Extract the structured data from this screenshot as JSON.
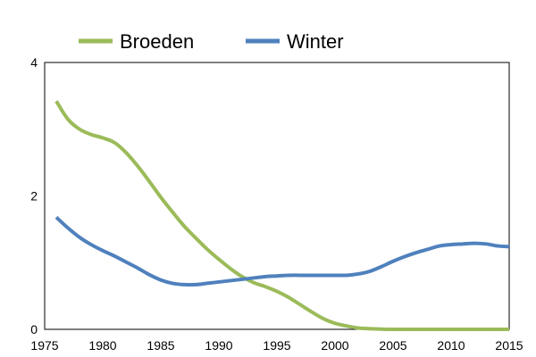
{
  "chart_data": {
    "type": "line",
    "title": "",
    "xlabel": "",
    "ylabel": "",
    "xlim": [
      1975,
      2015
    ],
    "ylim": [
      0,
      4
    ],
    "x_ticks": [
      1975,
      1980,
      1985,
      1990,
      1995,
      2000,
      2005,
      2010,
      2015
    ],
    "y_ticks": [
      0,
      2,
      4
    ],
    "grid": false,
    "legend": {
      "position": "top"
    },
    "series": [
      {
        "name": "Broeden",
        "color": "#9bbb59",
        "x": [
          1976,
          1977,
          1978,
          1979,
          1980,
          1981,
          1982,
          1983,
          1984,
          1985,
          1986,
          1987,
          1988,
          1989,
          1990,
          1991,
          1992,
          1993,
          1994,
          1995,
          1996,
          1997,
          1998,
          1999,
          2000,
          2001,
          2002,
          2003,
          2005,
          2008,
          2010,
          2012,
          2015
        ],
        "y": [
          3.42,
          3.15,
          3.0,
          2.92,
          2.87,
          2.8,
          2.65,
          2.45,
          2.22,
          1.98,
          1.76,
          1.55,
          1.37,
          1.2,
          1.05,
          0.91,
          0.79,
          0.7,
          0.64,
          0.57,
          0.48,
          0.37,
          0.26,
          0.16,
          0.09,
          0.05,
          0.02,
          0.01,
          0.0,
          0.0,
          0.0,
          0.0,
          0.0
        ]
      },
      {
        "name": "Winter",
        "color": "#4f81bd",
        "x": [
          1976,
          1977,
          1978,
          1979,
          1980,
          1981,
          1982,
          1983,
          1984,
          1985,
          1986,
          1987,
          1988,
          1989,
          1990,
          1991,
          1992,
          1993,
          1994,
          1995,
          1996,
          1997,
          1998,
          1999,
          2000,
          2001,
          2002,
          2003,
          2004,
          2005,
          2006,
          2007,
          2008,
          2009,
          2010,
          2011,
          2012,
          2013,
          2014,
          2015
        ],
        "y": [
          1.68,
          1.52,
          1.38,
          1.27,
          1.18,
          1.1,
          1.01,
          0.92,
          0.82,
          0.74,
          0.69,
          0.67,
          0.67,
          0.69,
          0.71,
          0.73,
          0.75,
          0.77,
          0.79,
          0.8,
          0.81,
          0.81,
          0.81,
          0.81,
          0.81,
          0.81,
          0.83,
          0.87,
          0.94,
          1.02,
          1.09,
          1.15,
          1.2,
          1.25,
          1.27,
          1.28,
          1.29,
          1.28,
          1.25,
          1.24
        ]
      }
    ]
  }
}
